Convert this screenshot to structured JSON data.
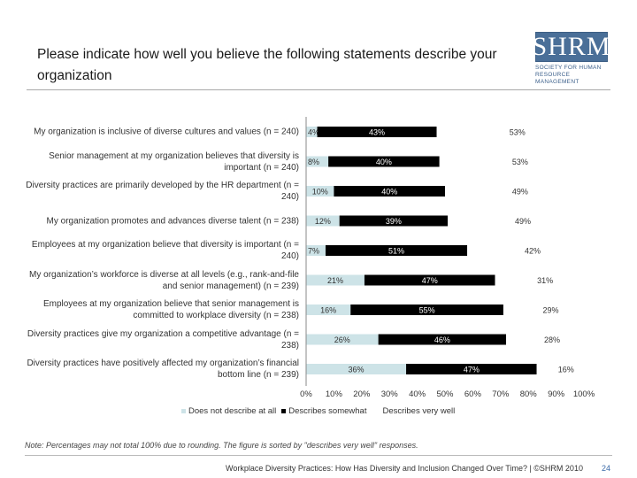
{
  "header": {
    "title": "Please indicate how well you believe the following statements describe your organization",
    "logo_text": "SHRM",
    "logo_subtitle": "Society for Human Resource Management"
  },
  "chart_data": {
    "type": "bar",
    "stacked": true,
    "orientation": "horizontal",
    "categories": [
      "My organization is inclusive of diverse cultures and values (n = 240)",
      "Senior management at my organization believes that diversity is important (n = 240)",
      "Diversity practices are primarily developed by the HR department (n = 240)",
      "My organization promotes and advances diverse talent (n = 238)",
      "Employees at my organization believe that diversity is important (n = 240)",
      "My organization’s workforce is diverse at all levels (e.g., rank-and-file and senior management) (n = 239)",
      "Employees at my organization believe that senior management is committed to workplace diversity (n = 238)",
      "Diversity practices give my organization a competitive advantage (n = 238)",
      "Diversity practices have positively affected my organization’s financial bottom line (n = 239)"
    ],
    "series": [
      {
        "name": "Does not describe at all",
        "color": "#cde3e7",
        "values": [
          4,
          8,
          10,
          12,
          7,
          21,
          16,
          26,
          36
        ]
      },
      {
        "name": "Describes somewhat",
        "color": "#000000",
        "values": [
          43,
          40,
          40,
          39,
          51,
          47,
          55,
          46,
          47
        ]
      },
      {
        "name": "Describes very well",
        "color": "#ffffff",
        "values": [
          53,
          53,
          49,
          49,
          42,
          31,
          29,
          28,
          16
        ]
      }
    ],
    "value_labels": [
      [
        "4%",
        "43%",
        "53%"
      ],
      [
        "8%",
        "40%",
        "53%"
      ],
      [
        "10%",
        "40%",
        "49%"
      ],
      [
        "12%",
        "39%",
        "49%"
      ],
      [
        "7%",
        "51%",
        "42%"
      ],
      [
        "21%",
        "47%",
        "31%"
      ],
      [
        "16%",
        "55%",
        "29%"
      ],
      [
        "26%",
        "46%",
        "28%"
      ],
      [
        "36%",
        "47%",
        "16%"
      ]
    ],
    "xlim": [
      0,
      100
    ],
    "x_ticks": [
      "0%",
      "10%",
      "20%",
      "30%",
      "40%",
      "50%",
      "60%",
      "70%",
      "80%",
      "90%",
      "100%"
    ],
    "legend_position": "bottom",
    "grid": false
  },
  "note": "Note: Percentages may not total 100% due to rounding. The figure is sorted by \"describes very well\" responses.",
  "footer": {
    "source": "Workplace Diversity Practices: How Has Diversity and Inclusion Changed Over Time? | ©SHRM 2010",
    "page_number": "24"
  }
}
